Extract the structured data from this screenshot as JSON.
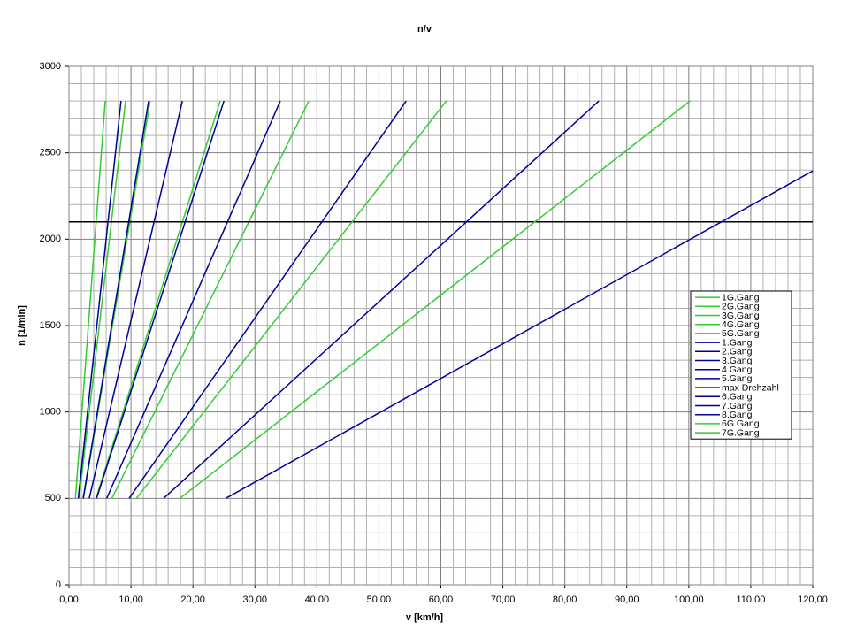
{
  "chart_data": {
    "type": "line",
    "title": "n/v",
    "x_label": "v [km/h]",
    "y_label": "n [1/min]",
    "xlim": [
      0,
      120
    ],
    "ylim": [
      0,
      3000
    ],
    "xticks": [
      {
        "value": 0,
        "label": "0,00"
      },
      {
        "value": 10,
        "label": "10,00"
      },
      {
        "value": 20,
        "label": "20,00"
      },
      {
        "value": 30,
        "label": "30,00"
      },
      {
        "value": 40,
        "label": "40,00"
      },
      {
        "value": 50,
        "label": "50,00"
      },
      {
        "value": 60,
        "label": "60,00"
      },
      {
        "value": 70,
        "label": "70,00"
      },
      {
        "value": 80,
        "label": "80,00"
      },
      {
        "value": 90,
        "label": "90,00"
      },
      {
        "value": 100,
        "label": "100,00"
      },
      {
        "value": 110,
        "label": "110,00"
      },
      {
        "value": 120,
        "label": "120,00"
      }
    ],
    "yticks": [
      0,
      500,
      1000,
      1500,
      2000,
      2500,
      3000
    ],
    "grid": true,
    "series": [
      {
        "name": "1G.Gang",
        "color": "#33cc33",
        "x": [
          1.04,
          5.85
        ],
        "values": [
          500,
          2800
        ]
      },
      {
        "name": "2G.Gang",
        "color": "#33cc33",
        "x": [
          1.63,
          9.13
        ],
        "values": [
          500,
          2800
        ]
      },
      {
        "name": "3G.Gang",
        "color": "#33cc33",
        "x": [
          2.34,
          13.1
        ],
        "values": [
          500,
          2800
        ]
      },
      {
        "name": "4G.Gang",
        "color": "#33cc33",
        "x": [
          4.36,
          24.4
        ],
        "values": [
          500,
          2800
        ]
      },
      {
        "name": "5G.Gang",
        "color": "#33cc33",
        "x": [
          6.91,
          38.7
        ],
        "values": [
          500,
          2800
        ]
      },
      {
        "name": "1.Gang",
        "color": "#000099",
        "x": [
          1.5,
          8.4
        ],
        "values": [
          500,
          2800
        ]
      },
      {
        "name": "2.Gang",
        "color": "#000099",
        "x": [
          2.29,
          12.85
        ],
        "values": [
          500,
          2800
        ]
      },
      {
        "name": "3.Gang",
        "color": "#000099",
        "x": [
          3.27,
          18.3
        ],
        "values": [
          500,
          2800
        ]
      },
      {
        "name": "4.Gang",
        "color": "#000099",
        "x": [
          4.46,
          25.0
        ],
        "values": [
          500,
          2800
        ]
      },
      {
        "name": "5.Gang",
        "color": "#000099",
        "x": [
          6.09,
          34.1
        ],
        "values": [
          500,
          2800
        ]
      },
      {
        "name": "max Drehzahl",
        "color": "#000000",
        "x": [
          0,
          120
        ],
        "values": [
          2100,
          2100
        ]
      },
      {
        "name": "6.Gang",
        "color": "#000099",
        "x": [
          9.71,
          54.4
        ],
        "values": [
          500,
          2800
        ]
      },
      {
        "name": "7.Gang",
        "color": "#000099",
        "x": [
          15.27,
          85.5
        ],
        "values": [
          500,
          2800
        ]
      },
      {
        "name": "8.Gang",
        "color": "#000099",
        "x": [
          25.3,
          120
        ],
        "values": [
          500,
          2395
        ]
      },
      {
        "name": "6G.Gang",
        "color": "#33cc33",
        "x": [
          10.88,
          60.9
        ],
        "values": [
          500,
          2800
        ]
      },
      {
        "name": "7G.Gang",
        "color": "#33cc33",
        "x": [
          17.9,
          100.2
        ],
        "values": [
          500,
          2800
        ]
      }
    ]
  }
}
